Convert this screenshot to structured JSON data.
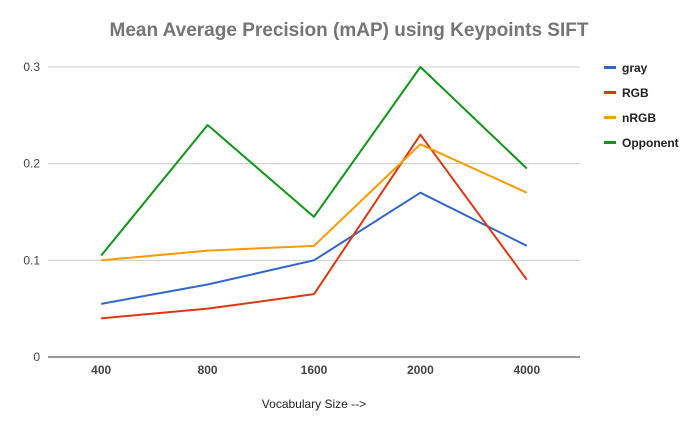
{
  "chart_data": {
    "type": "line",
    "title": "Mean Average Precision (mAP) using Keypoints SIFT",
    "xlabel": "Vocabulary Size -->",
    "ylabel": "",
    "categories": [
      "400",
      "800",
      "1600",
      "2000",
      "4000"
    ],
    "yticks": [
      "0",
      "0.1",
      "0.2",
      "0.3"
    ],
    "ylim": [
      0,
      0.3
    ],
    "grid": true,
    "legend_position": "right",
    "series": [
      {
        "name": "gray",
        "color": "#3366cc",
        "values": [
          0.055,
          0.075,
          0.1,
          0.17,
          0.115
        ]
      },
      {
        "name": "RGB",
        "color": "#dc3912",
        "values": [
          0.04,
          0.05,
          0.065,
          0.23,
          0.08
        ]
      },
      {
        "name": "nRGB",
        "color": "#ff9900",
        "values": [
          0.1,
          0.11,
          0.115,
          0.22,
          0.17
        ]
      },
      {
        "name": "Opponent",
        "color": "#109618",
        "values": [
          0.105,
          0.24,
          0.145,
          0.3,
          0.195
        ]
      }
    ]
  }
}
